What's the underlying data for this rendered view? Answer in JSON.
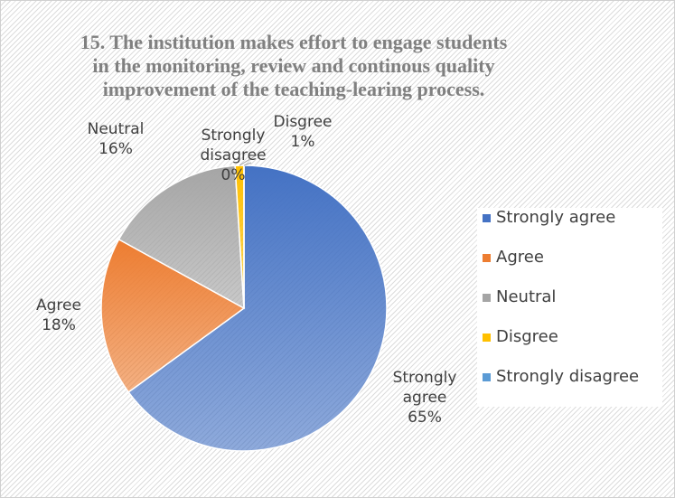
{
  "chart_data": {
    "type": "pie",
    "title": "15. The institution makes effort to engage students in the monitoring, review and continous quality improvement of the teaching-learing process.",
    "categories": [
      "Strongly agree",
      "Agree",
      "Neutral",
      "Disgree",
      "Strongly disagree"
    ],
    "values": [
      65,
      18,
      16,
      1,
      0
    ],
    "value_labels": [
      "65%",
      "18%",
      "16%",
      "1%",
      "0%"
    ],
    "colors": [
      "#4472c4",
      "#ed7d31",
      "#a5a5a5",
      "#ffc000",
      "#5b9bd5"
    ],
    "legend": "right"
  }
}
